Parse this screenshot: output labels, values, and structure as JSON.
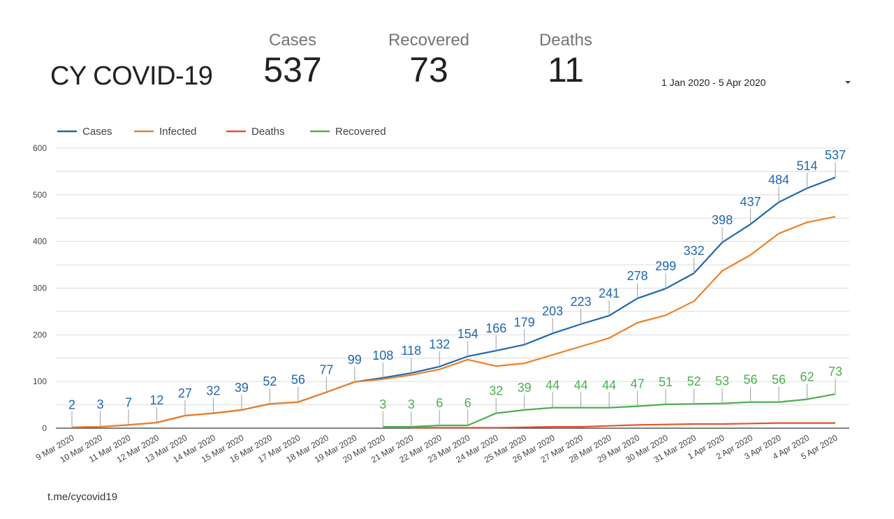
{
  "header": {
    "title": "CY COVID-19",
    "kpis": [
      {
        "label": "Cases",
        "value": "537"
      },
      {
        "label": "Recovered",
        "value": "73"
      },
      {
        "label": "Deaths",
        "value": "11"
      }
    ],
    "date_range": "1 Jan 2020 - 5 Apr 2020",
    "date_dropdown_icon": "caret-down-icon"
  },
  "footer": {
    "link": "t.me/cycovid19"
  },
  "chart_data": {
    "type": "line",
    "title": "",
    "xlabel": "",
    "ylabel": "",
    "ylim": [
      0,
      600
    ],
    "yticks": [
      0,
      100,
      200,
      300,
      400,
      500,
      600
    ],
    "grid": true,
    "legend_position": "top-left",
    "x": [
      "9 Mar 2020",
      "10 Mar 2020",
      "11 Mar 2020",
      "12 Mar 2020",
      "13 Mar 2020",
      "14 Mar 2020",
      "15 Mar 2020",
      "16 Mar 2020",
      "17 Mar 2020",
      "18 Mar 2020",
      "19 Mar 2020",
      "20 Mar 2020",
      "21 Mar 2020",
      "22 Mar 2020",
      "23 Mar 2020",
      "24 Mar 2020",
      "25 Mar 2020",
      "26 Mar 2020",
      "27 Mar 2020",
      "28 Mar 2020",
      "29 Mar 2020",
      "30 Mar 2020",
      "31 Mar 2020",
      "1 Apr 2020",
      "2 Apr 2020",
      "3 Apr 2020",
      "4 Apr 2020",
      "5 Apr 2020"
    ],
    "series": [
      {
        "name": "Cases",
        "color": "#1f66b0",
        "labeled": true,
        "values": [
          2,
          3,
          7,
          12,
          27,
          32,
          39,
          52,
          56,
          77,
          99,
          108,
          118,
          132,
          154,
          166,
          179,
          203,
          223,
          241,
          278,
          299,
          332,
          398,
          437,
          484,
          514,
          537
        ]
      },
      {
        "name": "Infected",
        "color": "#ef7f25",
        "labeled": false,
        "values": [
          2,
          3,
          7,
          12,
          27,
          32,
          39,
          52,
          56,
          77,
          99,
          105,
          114,
          126,
          147,
          133,
          139,
          157,
          175,
          193,
          226,
          242,
          272,
          337,
          371,
          417,
          441,
          453
        ]
      },
      {
        "name": "Deaths",
        "color": "#e4532d",
        "labeled": false,
        "values": [
          null,
          null,
          null,
          null,
          null,
          null,
          null,
          null,
          null,
          null,
          null,
          null,
          1,
          1,
          1,
          1,
          2,
          3,
          3,
          5,
          7,
          8,
          9,
          9,
          10,
          11,
          11,
          11
        ]
      },
      {
        "name": "Recovered",
        "color": "#4caf50",
        "labeled": true,
        "values": [
          null,
          null,
          null,
          null,
          null,
          null,
          null,
          null,
          null,
          null,
          null,
          3,
          3,
          6,
          6,
          32,
          39,
          44,
          44,
          44,
          47,
          51,
          52,
          53,
          56,
          56,
          62,
          73
        ]
      }
    ]
  }
}
